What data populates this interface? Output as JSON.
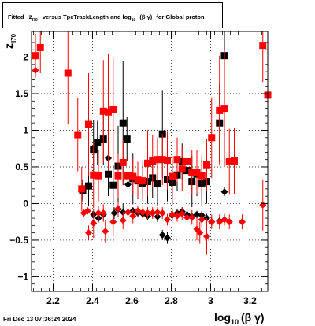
{
  "title": {
    "prefix": "Fitted",
    "var": "z",
    "var_sub": "I70",
    "mid": "versus TpcTrackLength and log",
    "log_sub": "10",
    "beta_gamma": "(β γ)",
    "suffix": "for Global proton"
  },
  "timestamp": "Fri Dec 13 07:36:24 2024",
  "colors": {
    "black_series": "#000000",
    "red_series": "#ff0000",
    "grid": "#000000"
  },
  "chart_data": {
    "type": "scatter",
    "title": "Fitted z_I70 versus TpcTrackLength and log_10 (β γ) for Global proton",
    "xlabel": {
      "main": "log",
      "sub": "10",
      "tail": "(β γ)"
    },
    "ylabel": {
      "main": "z",
      "sub": "I70"
    },
    "xlim": [
      2.09,
      3.29
    ],
    "ylim": [
      -1.2,
      2.35
    ],
    "xticks": [
      2.2,
      2.4,
      2.6,
      2.8,
      3.0,
      3.2
    ],
    "xtick_labels": [
      "2.2",
      "2.4",
      "2.6",
      "2.8",
      "3",
      "3.2"
    ],
    "yticks": [
      -1,
      -0.5,
      0,
      0.5,
      1,
      1.5,
      2
    ],
    "ytick_labels": [
      "−1",
      "−0.5",
      "0",
      "0.5",
      "1",
      "1.5",
      "2"
    ],
    "grid": true,
    "series": [
      {
        "marker": "square",
        "color": "#000000",
        "points": [
          {
            "x": 2.35,
            "y": 0.18,
            "err": 0.15
          },
          {
            "x": 2.38,
            "y": 0.24,
            "err": 0.28
          },
          {
            "x": 2.405,
            "y": 0.74,
            "err": 0.4
          },
          {
            "x": 2.425,
            "y": 0.83,
            "err": 0.3
          },
          {
            "x": 2.455,
            "y": 0.88,
            "err": 0.35
          },
          {
            "x": 2.48,
            "y": 0.4,
            "err": 0.3
          },
          {
            "x": 2.505,
            "y": 0.25,
            "err": 0.28
          },
          {
            "x": 2.53,
            "y": 0.51,
            "err": 0.55
          },
          {
            "x": 2.555,
            "y": 1.1,
            "err": 0.85
          },
          {
            "x": 2.575,
            "y": 0.88,
            "err": 0.3
          },
          {
            "x": 2.605,
            "y": 0.34,
            "err": 0.35
          },
          {
            "x": 2.63,
            "y": 0.31,
            "err": 0.25
          },
          {
            "x": 2.655,
            "y": 0.28,
            "err": 0.22
          },
          {
            "x": 2.68,
            "y": 0.3,
            "err": 0.3
          },
          {
            "x": 2.705,
            "y": 0.35,
            "err": 0.28
          },
          {
            "x": 2.73,
            "y": 0.27,
            "err": 0.3
          },
          {
            "x": 2.755,
            "y": 0.95,
            "err": 0.6
          },
          {
            "x": 2.78,
            "y": 0.33,
            "err": 0.3
          },
          {
            "x": 2.805,
            "y": 0.29,
            "err": 0.3
          },
          {
            "x": 2.83,
            "y": 0.39,
            "err": 0.22
          },
          {
            "x": 2.855,
            "y": 0.57,
            "err": 0.25
          },
          {
            "x": 2.88,
            "y": 0.45,
            "err": 0.28
          },
          {
            "x": 2.905,
            "y": 0.3,
            "err": 0.35
          },
          {
            "x": 2.93,
            "y": 0.4,
            "err": 0.3
          },
          {
            "x": 2.955,
            "y": 0.28,
            "err": 0.32
          },
          {
            "x": 2.98,
            "y": 0.3,
            "err": 0.3
          },
          {
            "x": 3.045,
            "y": 1.1,
            "err": 0.55
          },
          {
            "x": 3.07,
            "y": 2.02,
            "err": 0.6
          }
        ]
      },
      {
        "marker": "diamond",
        "color": "#000000",
        "points": [
          {
            "x": 2.405,
            "y": -0.15,
            "err": 0.05
          },
          {
            "x": 2.43,
            "y": -0.2,
            "err": 0.06
          },
          {
            "x": 2.455,
            "y": -0.15,
            "err": 0.08
          },
          {
            "x": 2.48,
            "y": 0.62,
            "err": 0.05
          },
          {
            "x": 2.51,
            "y": -0.13,
            "err": 0.08
          },
          {
            "x": 2.53,
            "y": -0.08,
            "err": 0.1
          },
          {
            "x": 2.555,
            "y": -0.12,
            "err": 0.12
          },
          {
            "x": 2.58,
            "y": 0.26,
            "err": 0.05
          },
          {
            "x": 2.605,
            "y": -0.1,
            "err": 0.05
          },
          {
            "x": 2.63,
            "y": -0.13,
            "err": 0.06
          },
          {
            "x": 2.655,
            "y": -0.14,
            "err": 0.06
          },
          {
            "x": 2.68,
            "y": -0.17,
            "err": 0.05
          },
          {
            "x": 2.705,
            "y": -0.13,
            "err": 0.06
          },
          {
            "x": 2.73,
            "y": -0.18,
            "err": 0.07
          },
          {
            "x": 2.755,
            "y": -0.43,
            "err": 0.07
          },
          {
            "x": 2.78,
            "y": -0.47,
            "err": 0.08
          },
          {
            "x": 2.805,
            "y": -0.16,
            "err": 0.07
          },
          {
            "x": 2.83,
            "y": -0.13,
            "err": 0.05
          },
          {
            "x": 2.855,
            "y": -0.11,
            "err": 0.06
          },
          {
            "x": 2.88,
            "y": -0.15,
            "err": 0.08
          },
          {
            "x": 2.905,
            "y": -0.18,
            "err": 0.06
          },
          {
            "x": 2.93,
            "y": -0.15,
            "err": 0.05
          },
          {
            "x": 2.955,
            "y": -0.16,
            "err": 0.06
          },
          {
            "x": 2.98,
            "y": -0.2,
            "err": 0.06
          },
          {
            "x": 3.005,
            "y": -0.25,
            "err": 0.06
          },
          {
            "x": 3.045,
            "y": -0.24,
            "err": 0.06
          },
          {
            "x": 3.07,
            "y": 0.16,
            "err": 0.06
          }
        ]
      },
      {
        "marker": "square",
        "color": "#ff0000",
        "points": [
          {
            "x": 2.11,
            "y": 2.02,
            "err": 0.3
          },
          {
            "x": 2.135,
            "y": 2.13,
            "err": 0.35
          },
          {
            "x": 2.275,
            "y": 1.78,
            "err": 0.7
          },
          {
            "x": 2.325,
            "y": 0.94,
            "err": 0.5
          },
          {
            "x": 2.345,
            "y": 0.2,
            "err": 0.3
          },
          {
            "x": 2.38,
            "y": 1.08,
            "err": 0.7
          },
          {
            "x": 2.405,
            "y": 0.39,
            "err": 0.45
          },
          {
            "x": 2.43,
            "y": 0.38,
            "err": 0.35
          },
          {
            "x": 2.455,
            "y": 1.26,
            "err": 0.7
          },
          {
            "x": 2.48,
            "y": 1.25,
            "err": 0.8
          },
          {
            "x": 2.505,
            "y": 1.28,
            "err": 0.7
          },
          {
            "x": 2.53,
            "y": 0.38,
            "err": 0.3
          },
          {
            "x": 2.555,
            "y": 0.56,
            "err": 0.3
          },
          {
            "x": 2.58,
            "y": 0.38,
            "err": 0.2
          },
          {
            "x": 2.605,
            "y": 0.37,
            "err": 0.25
          },
          {
            "x": 2.63,
            "y": 0.32,
            "err": 0.25
          },
          {
            "x": 2.655,
            "y": 0.31,
            "err": 0.28
          },
          {
            "x": 2.68,
            "y": 0.55,
            "err": 0.45
          },
          {
            "x": 2.705,
            "y": 0.58,
            "err": 0.35
          },
          {
            "x": 2.73,
            "y": 0.6,
            "err": 0.3
          },
          {
            "x": 2.755,
            "y": 0.6,
            "err": 0.35
          },
          {
            "x": 2.78,
            "y": 0.59,
            "err": 0.4
          },
          {
            "x": 2.805,
            "y": 0.37,
            "err": 0.28
          },
          {
            "x": 2.83,
            "y": 0.6,
            "err": 0.3
          },
          {
            "x": 2.855,
            "y": 0.47,
            "err": 0.3
          },
          {
            "x": 2.88,
            "y": 0.57,
            "err": 0.3
          },
          {
            "x": 2.905,
            "y": 0.43,
            "err": 0.3
          },
          {
            "x": 2.93,
            "y": 0.43,
            "err": 0.3
          },
          {
            "x": 2.955,
            "y": 0.38,
            "err": 0.28
          },
          {
            "x": 2.98,
            "y": 0.53,
            "err": 0.35
          },
          {
            "x": 3.005,
            "y": 0.9,
            "err": 0.55
          },
          {
            "x": 3.045,
            "y": 1.27,
            "err": 0.75
          },
          {
            "x": 3.07,
            "y": 1.3,
            "err": 0.8
          },
          {
            "x": 3.095,
            "y": 0.57,
            "err": 0.45
          },
          {
            "x": 3.12,
            "y": 0.58,
            "err": 0.45
          },
          {
            "x": 3.265,
            "y": 2.16,
            "err": 0.5
          },
          {
            "x": 3.29,
            "y": 1.48,
            "err": 0.5
          }
        ]
      },
      {
        "marker": "diamond",
        "color": "#ff0000",
        "points": [
          {
            "x": 2.11,
            "y": 1.82,
            "err": 0.06
          },
          {
            "x": 2.355,
            "y": -0.13,
            "err": 0.05
          },
          {
            "x": 2.375,
            "y": -0.1,
            "err": 0.05
          },
          {
            "x": 2.38,
            "y": -0.4,
            "err": 0.1
          },
          {
            "x": 2.405,
            "y": -0.27,
            "err": 0.2
          },
          {
            "x": 2.43,
            "y": -0.13,
            "err": 0.1
          },
          {
            "x": 2.455,
            "y": -0.13,
            "err": 0.12
          },
          {
            "x": 2.465,
            "y": -0.38,
            "err": 0.15
          },
          {
            "x": 2.505,
            "y": -0.25,
            "err": 0.2
          },
          {
            "x": 2.53,
            "y": -0.07,
            "err": 0.1
          },
          {
            "x": 2.555,
            "y": -0.23,
            "err": 0.12
          },
          {
            "x": 2.58,
            "y": -0.12,
            "err": 0.08
          },
          {
            "x": 2.605,
            "y": -0.17,
            "err": 0.1
          },
          {
            "x": 2.63,
            "y": -0.1,
            "err": 0.07
          },
          {
            "x": 2.655,
            "y": -0.12,
            "err": 0.08
          },
          {
            "x": 2.68,
            "y": -0.13,
            "err": 0.08
          },
          {
            "x": 2.705,
            "y": -0.13,
            "err": 0.08
          },
          {
            "x": 2.73,
            "y": -0.12,
            "err": 0.07
          },
          {
            "x": 2.755,
            "y": -0.13,
            "err": 0.08
          },
          {
            "x": 2.78,
            "y": -0.22,
            "err": 0.08
          },
          {
            "x": 2.805,
            "y": -0.15,
            "err": 0.08
          },
          {
            "x": 2.83,
            "y": -0.17,
            "err": 0.08
          },
          {
            "x": 2.855,
            "y": -0.14,
            "err": 0.08
          },
          {
            "x": 2.88,
            "y": -0.19,
            "err": 0.1
          },
          {
            "x": 2.905,
            "y": -0.19,
            "err": 0.1
          },
          {
            "x": 2.93,
            "y": -0.35,
            "err": 0.15
          },
          {
            "x": 2.945,
            "y": -0.4,
            "err": 0.15
          },
          {
            "x": 2.955,
            "y": -0.22,
            "err": 0.1
          },
          {
            "x": 2.98,
            "y": -0.45,
            "err": 0.25
          },
          {
            "x": 3.005,
            "y": -0.25,
            "err": 0.1
          },
          {
            "x": 3.045,
            "y": -0.25,
            "err": 0.1
          },
          {
            "x": 3.07,
            "y": -0.22,
            "err": 0.08
          },
          {
            "x": 3.095,
            "y": -0.25,
            "err": 0.1
          },
          {
            "x": 3.16,
            "y": -0.25,
            "err": 0.1
          },
          {
            "x": 3.265,
            "y": -0.02,
            "err": 0.35
          }
        ]
      }
    ]
  }
}
